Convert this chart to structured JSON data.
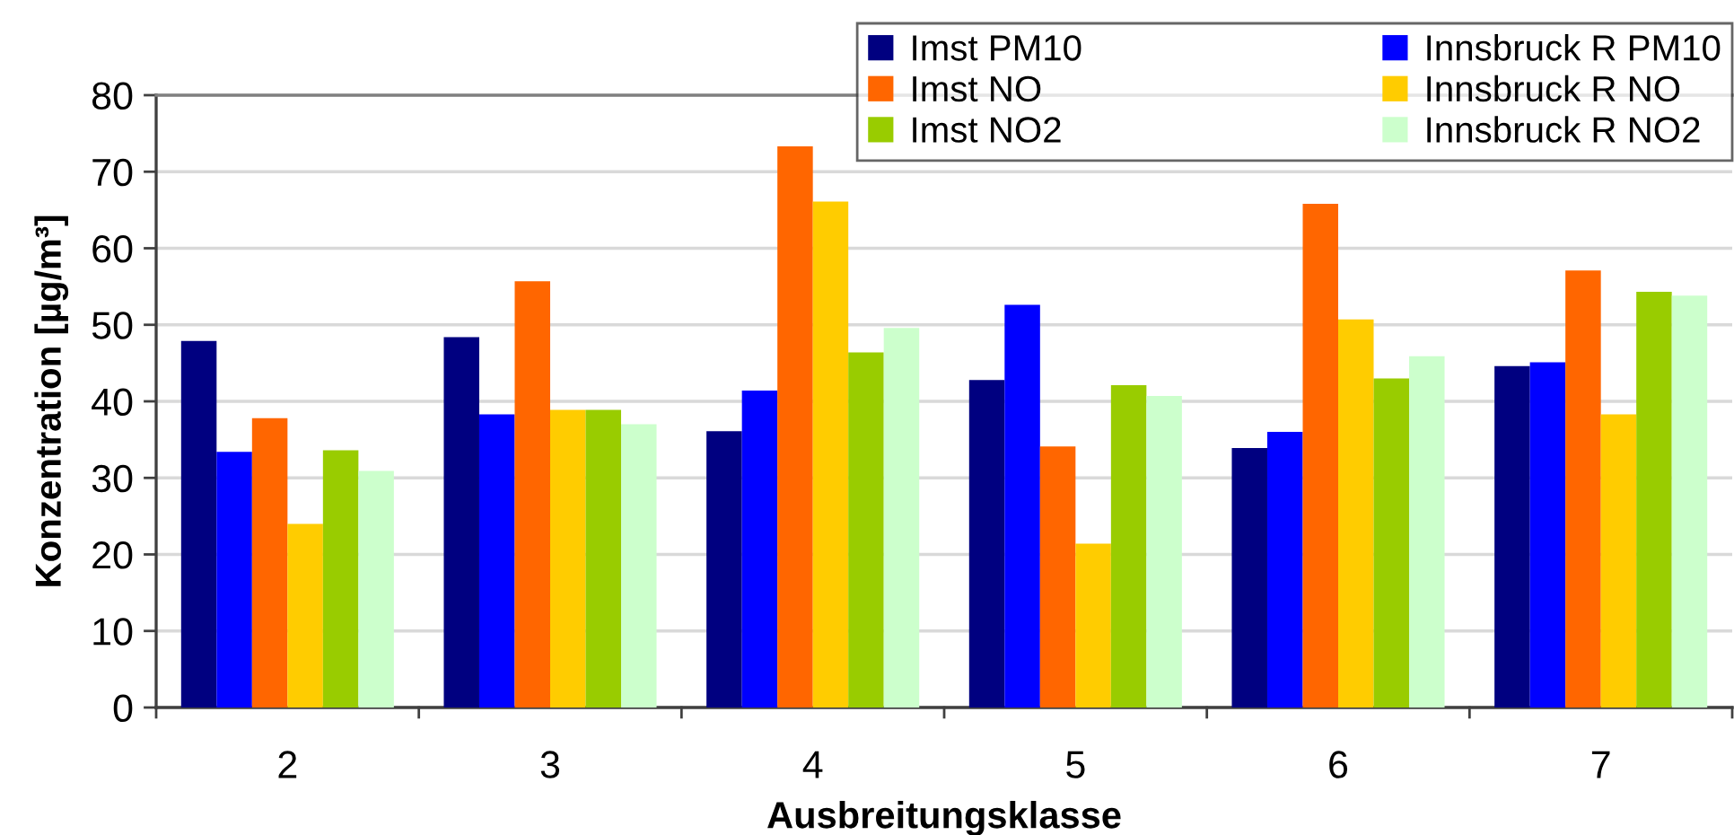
{
  "chart_data": {
    "type": "bar",
    "xlabel": "Ausbreitungsklasse",
    "ylabel": "Konzentration [µg/m³]",
    "categories": [
      "2",
      "3",
      "4",
      "5",
      "6",
      "7"
    ],
    "series": [
      {
        "name": "Imst PM10",
        "color": "#000080",
        "values": [
          47.9,
          48.4,
          36.1,
          42.8,
          33.9,
          44.6
        ]
      },
      {
        "name": "Innsbruck R PM10",
        "color": "#0000ff",
        "values": [
          33.4,
          38.3,
          41.4,
          52.6,
          36.0,
          45.1
        ]
      },
      {
        "name": "Imst NO",
        "color": "#ff6600",
        "values": [
          37.8,
          55.7,
          73.3,
          34.1,
          65.8,
          57.1
        ]
      },
      {
        "name": "Innsbruck R NO",
        "color": "#ffcc00",
        "values": [
          24.0,
          38.9,
          66.1,
          21.4,
          50.7,
          38.3
        ]
      },
      {
        "name": "Imst NO2",
        "color": "#99cc00",
        "values": [
          33.6,
          38.9,
          46.4,
          42.1,
          43.0,
          54.3
        ]
      },
      {
        "name": "Innsbruck R NO2",
        "color": "#ccffcc",
        "values": [
          30.9,
          37.0,
          49.6,
          40.7,
          45.9,
          53.8
        ]
      }
    ],
    "ylim": [
      0,
      80
    ],
    "yticks": [
      0,
      10,
      20,
      30,
      40,
      50,
      60,
      70,
      80
    ],
    "grid": "y",
    "legend": "top right"
  }
}
